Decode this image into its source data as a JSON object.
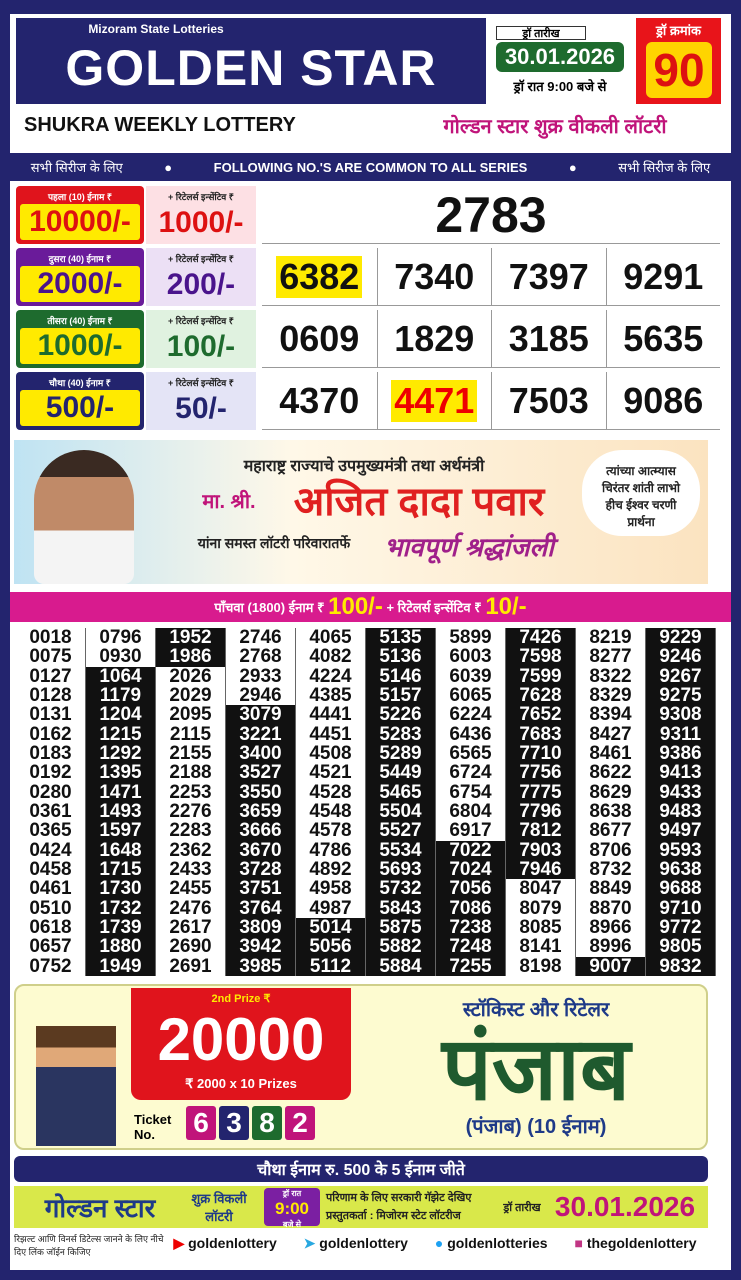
{
  "header": {
    "org": "Mizoram State Lotteries",
    "title": "GOLDEN STAR",
    "draw_date_label": "ड्रॉ तारीख",
    "draw_date": "30.01.2026",
    "draw_time": "ड्रॉ रात 9:00 बजे से",
    "draw_no_label": "ड्रॉ क्रमांक",
    "draw_no": "90",
    "subtitle": "SHUKRA WEEKLY LOTTERY",
    "subtitle_hi": "गोल्डन स्टार शुक्र वीकली लॉटरी"
  },
  "common": {
    "left": "सभी सिरीज के लिए",
    "center": "FOLLOWING NO.'S ARE COMMON TO ALL SERIES",
    "right": "सभी सिरीज के लिए"
  },
  "prizes": [
    {
      "label": "पहला (10) ईनाम ₹",
      "amount": "10000/-",
      "retailer_label": "+ रिटेलर्स इन्सेंटिव ₹",
      "retailer": "1000/-",
      "numbers": [
        "2783"
      ]
    },
    {
      "label": "दुसरा (40) ईनाम ₹",
      "amount": "2000/-",
      "retailer_label": "+ रिटेलर्स इन्सेंटिव ₹",
      "retailer": "200/-",
      "numbers": [
        "6382",
        "7340",
        "7397",
        "9291"
      ]
    },
    {
      "label": "तीसरा (40) ईनाम ₹",
      "amount": "1000/-",
      "retailer_label": "+ रिटेलर्स इन्सेंटिव ₹",
      "retailer": "100/-",
      "numbers": [
        "0609",
        "1829",
        "3185",
        "5635"
      ]
    },
    {
      "label": "चौथा (40) ईनाम ₹",
      "amount": "500/-",
      "retailer_label": "+ रिटेलर्स इन्सेंटिव ₹",
      "retailer": "50/-",
      "numbers": [
        "4370",
        "4471",
        "7503",
        "9086"
      ]
    }
  ],
  "banner": {
    "line1": "महाराष्ट्र राज्याचे उपमुख्यमंत्री तथा अर्थमंत्री",
    "honorific": "मा. श्री.",
    "name": "अजित दादा पवार",
    "line3": "यांना समस्त लॉटरी परिवारातर्फे",
    "tribute": "भावपूर्ण श्रद्धांजली",
    "prayer": "त्यांच्या आत्म्यास चिरंतर शांती लाभो हीच ईश्वर चरणी प्रार्थना"
  },
  "fifth": {
    "label": "पाँचवा (1800) ईनाम ₹",
    "amount": "100/-",
    "retailer_label": "+ रिटेलर्स इन्सेंटिव ₹",
    "retailer": "10/-",
    "columns": [
      [
        "0018",
        "0075",
        "0127",
        "0128",
        "0131",
        "0162",
        "0183",
        "0192",
        "0280",
        "0361",
        "0365",
        "0424",
        "0458",
        "0461",
        "0510",
        "0618",
        "0657",
        "0752"
      ],
      [
        "0796",
        "0930",
        "1064",
        "1179",
        "1204",
        "1215",
        "1292",
        "1395",
        "1471",
        "1493",
        "1597",
        "1648",
        "1715",
        "1730",
        "1732",
        "1739",
        "1880",
        "1949"
      ],
      [
        "1952",
        "1986",
        "2026",
        "2029",
        "2095",
        "2115",
        "2155",
        "2188",
        "2253",
        "2276",
        "2283",
        "2362",
        "2433",
        "2455",
        "2476",
        "2617",
        "2690",
        "2691"
      ],
      [
        "2746",
        "2768",
        "2933",
        "2946",
        "3079",
        "3221",
        "3400",
        "3527",
        "3550",
        "3659",
        "3666",
        "3670",
        "3728",
        "3751",
        "3764",
        "3809",
        "3942",
        "3985"
      ],
      [
        "4065",
        "4082",
        "4224",
        "4385",
        "4441",
        "4451",
        "4508",
        "4521",
        "4528",
        "4548",
        "4578",
        "4786",
        "4892",
        "4958",
        "4987",
        "5014",
        "5056",
        "5112"
      ],
      [
        "5135",
        "5136",
        "5146",
        "5157",
        "5226",
        "5283",
        "5289",
        "5449",
        "5465",
        "5504",
        "5527",
        "5534",
        "5693",
        "5732",
        "5843",
        "5875",
        "5882",
        "5884"
      ],
      [
        "5899",
        "6003",
        "6039",
        "6065",
        "6224",
        "6436",
        "6565",
        "6724",
        "6754",
        "6804",
        "6917",
        "7022",
        "7024",
        "7056",
        "7086",
        "7238",
        "7248",
        "7255"
      ],
      [
        "7426",
        "7598",
        "7599",
        "7628",
        "7652",
        "7683",
        "7710",
        "7756",
        "7775",
        "7796",
        "7812",
        "7903",
        "7946",
        "8047",
        "8079",
        "8085",
        "8141",
        "8198"
      ],
      [
        "8219",
        "8277",
        "8322",
        "8329",
        "8394",
        "8427",
        "8461",
        "8622",
        "8629",
        "8638",
        "8677",
        "8706",
        "8732",
        "8849",
        "8870",
        "8966",
        "8996",
        "9007"
      ],
      [
        "9229",
        "9246",
        "9267",
        "9275",
        "9308",
        "9311",
        "9386",
        "9413",
        "9433",
        "9483",
        "9497",
        "9593",
        "9638",
        "9688",
        "9710",
        "9772",
        "9805",
        "9832"
      ]
    ]
  },
  "promo": {
    "prize_label": "2nd Prize ₹",
    "amount": "20000",
    "detail": "₹ 2000 x 10 Prizes",
    "ticket_label": "Ticket No.",
    "ticket_digits": [
      "6",
      "3",
      "8",
      "2"
    ],
    "stockist": "स्टॉकिस्ट और रिटेलर",
    "state": "पंजाब",
    "state_note": "(पंजाब) (10 ईनाम)"
  },
  "strip": "चौथा ईनाम रु. 500 के 5 ईनाम जीते",
  "footer": {
    "brand": "गोल्डन स्टार",
    "brand_sub": "शुक्र विकली लॉटरी",
    "time_top": "ड्रॉ रात",
    "time": "9:00",
    "time_bottom": "बजे से",
    "gazette": "परिणाम के लिए सरकारी गॅझेट देखिए",
    "presenter": "प्रस्तुतकर्ता : मिजोरम स्टेट लॉटरीज",
    "date_label": "ड्रॉ तारीख",
    "date": "30.01.2026"
  },
  "social": {
    "note": "रिझल्ट आणि विनर्स डिटेल्स जानने के लिए नीचे दिए लिंक जॉईन किजिए",
    "youtube": "goldenlottery",
    "telegram": "goldenlottery",
    "twitter": "goldenlotteries",
    "instagram": "thegoldenlottery"
  }
}
